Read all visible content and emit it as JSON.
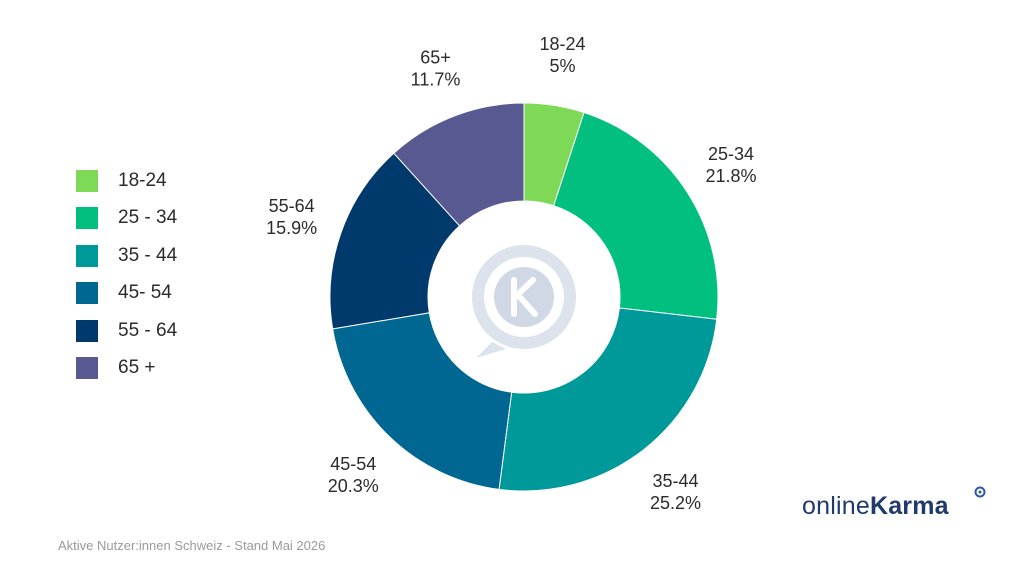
{
  "chart_data": {
    "type": "donut",
    "title": "",
    "slices": [
      {
        "label": "18-24",
        "value": 5,
        "value_label": "5%",
        "legend_label": "18-24",
        "color": "#7ed957"
      },
      {
        "label": "25-34",
        "value": 21.8,
        "value_label": "21.8%",
        "legend_label": "25 - 34",
        "color": "#00bf7f"
      },
      {
        "label": "35-44",
        "value": 25.2,
        "value_label": "25.2%",
        "legend_label": "35 - 44",
        "color": "#00999a"
      },
      {
        "label": "45-54",
        "value": 20.3,
        "value_label": "20.3%",
        "legend_label": "45- 54",
        "color": "#006792"
      },
      {
        "label": "55-64",
        "value": 15.9,
        "value_label": "15.9%",
        "legend_label": "55 - 64",
        "color": "#003a6c"
      },
      {
        "label": "65+",
        "value": 11.7,
        "value_label": "11.7%",
        "legend_label": "65 +",
        "color": "#575990"
      }
    ],
    "legend_position": "left"
  },
  "footer": {
    "note": "Aktive Nutzer:innen Schweiz - Stand Mai 2026"
  },
  "brand": {
    "prefix": "online",
    "suffix": "Karma"
  },
  "center_icon": "k-speech-bubble-icon"
}
